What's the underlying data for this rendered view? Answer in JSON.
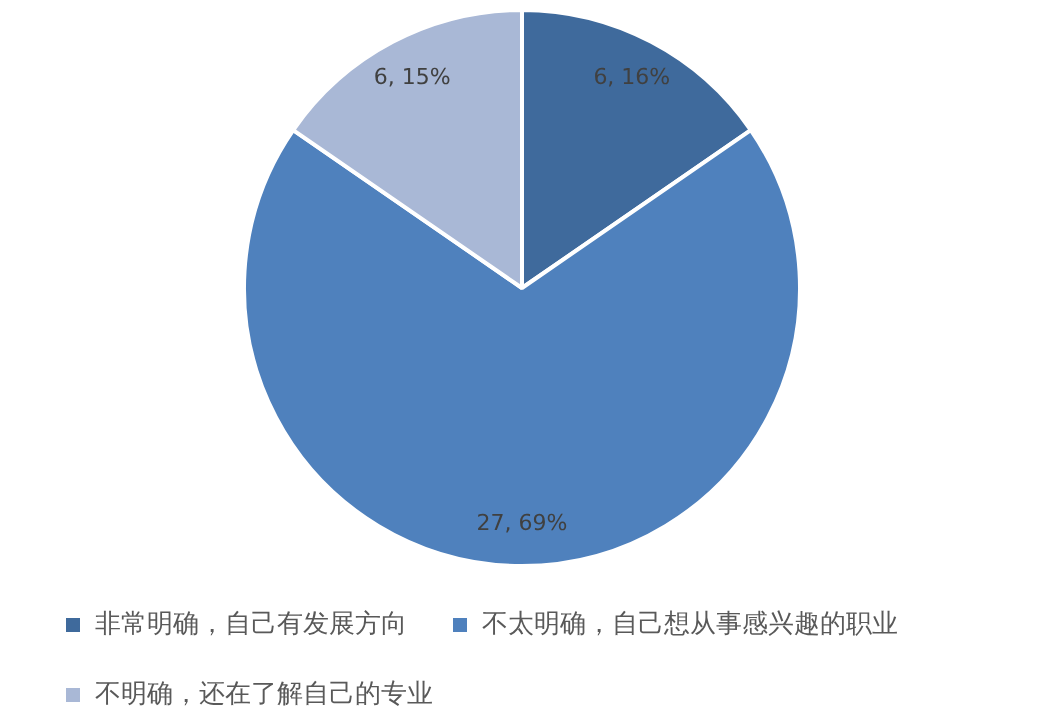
{
  "chart_data": {
    "type": "pie",
    "categories": [
      "非常明确，自己有发展方向",
      "不太明确，自己想从事感兴趣的职业",
      "不明确，还在了解自己的专业"
    ],
    "values": [
      6,
      27,
      6
    ],
    "colors": [
      "#3f6a9c",
      "#4f81bd",
      "#a9b8d6"
    ],
    "value_labels": [
      "6, 16%",
      "27, 69%",
      "6, 15%"
    ],
    "legend": "bottom"
  }
}
